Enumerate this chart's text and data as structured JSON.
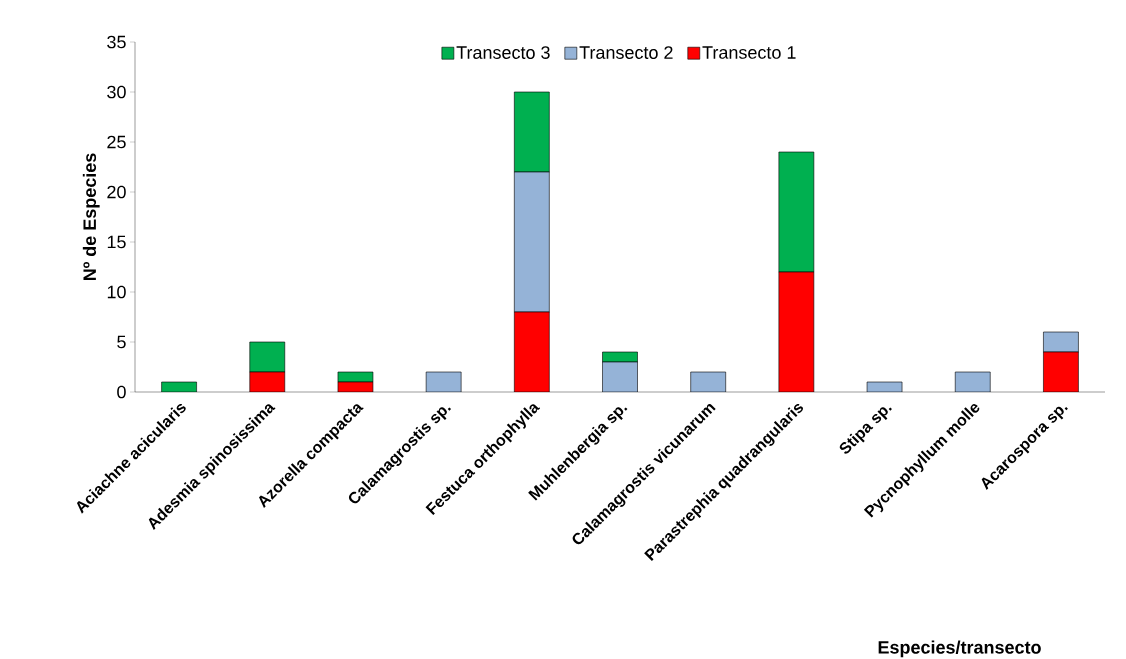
{
  "chart_data": {
    "type": "bar",
    "stacked": true,
    "xlabel": "Especies/transecto",
    "ylabel": "Nº  de  Especies",
    "categories": [
      "Aciachne acicularis",
      "Adesmia spinosissima",
      "Azorella compacta",
      "Calamagrostis sp.",
      "Festuca orthophylla",
      "Muhlenbergia sp.",
      "Calamagrostis  vicunarum",
      "Parastrephia quadrangularis",
      "Stipa sp.",
      "Pycnophyllum molle",
      "Acarospora sp."
    ],
    "series": [
      {
        "name": "Transecto 1",
        "color": "#ff0000",
        "values": [
          0,
          2,
          1,
          0,
          8,
          0,
          0,
          12,
          0,
          0,
          4
        ]
      },
      {
        "name": "Transecto 2",
        "color": "#95b3d7",
        "values": [
          0,
          0,
          0,
          2,
          14,
          3,
          2,
          0,
          1,
          2,
          2
        ]
      },
      {
        "name": "Transecto 3",
        "color": "#00b050",
        "values": [
          1,
          3,
          1,
          0,
          8,
          1,
          0,
          12,
          0,
          0,
          0
        ]
      }
    ],
    "ylim": [
      0,
      35
    ],
    "yticks": [
      0,
      5,
      10,
      15,
      20,
      25,
      30,
      35
    ],
    "legend": "top",
    "grid": false
  }
}
